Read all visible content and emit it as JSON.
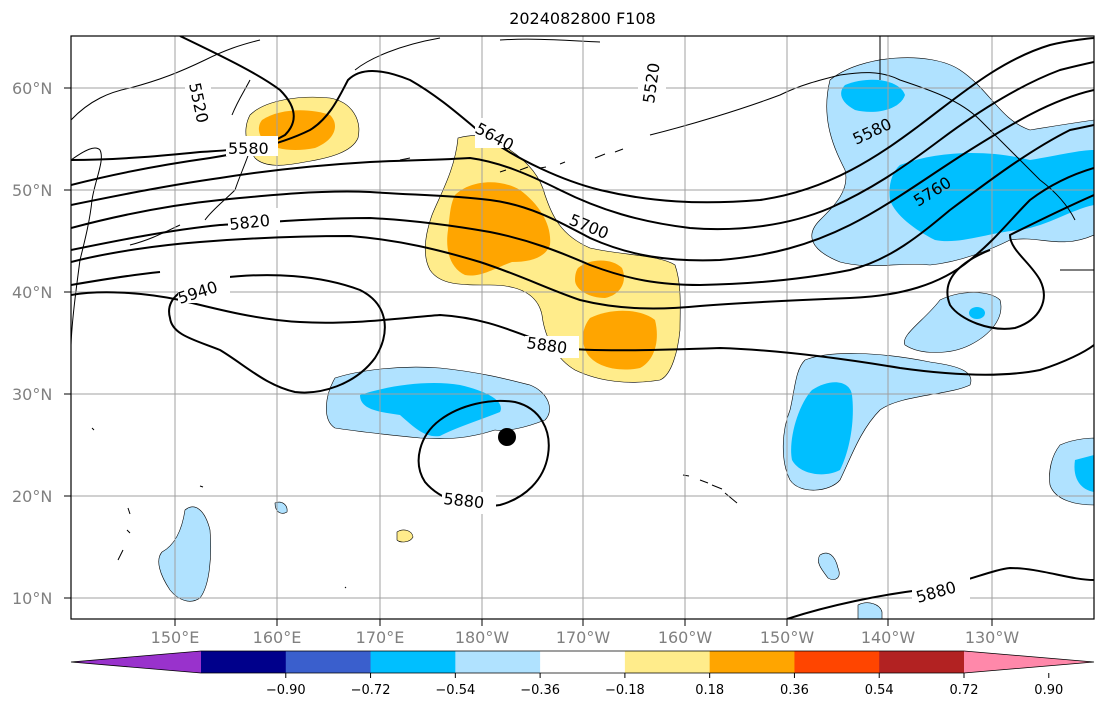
{
  "title": "2024082800 F108",
  "map": {
    "lat_ticks": [
      "10°N",
      "20°N",
      "30°N",
      "40°N",
      "50°N",
      "60°N"
    ],
    "lon_ticks": [
      "150°E",
      "160°E",
      "170°E",
      "180°W",
      "170°W",
      "160°W",
      "150°W",
      "140°W",
      "130°W"
    ],
    "contour_labels": [
      "5520",
      "5580",
      "5640",
      "5700",
      "5820",
      "5940",
      "5880",
      "5880",
      "5580",
      "5760",
      "5520",
      "5880"
    ],
    "storm_marker": "storm-center-dot"
  },
  "colorbar": {
    "labels": [
      "−0.90",
      "−0.72",
      "−0.54",
      "−0.36",
      "−0.18",
      "0.18",
      "0.36",
      "0.54",
      "0.72",
      "0.90"
    ],
    "colors": [
      "#9932cc",
      "#00008b",
      "#3a5fcd",
      "#00bfff",
      "#b0e2ff",
      "#ffffff",
      "#ffec8b",
      "#ffa500",
      "#ff4500",
      "#b22222",
      "#ff88aa"
    ]
  }
}
